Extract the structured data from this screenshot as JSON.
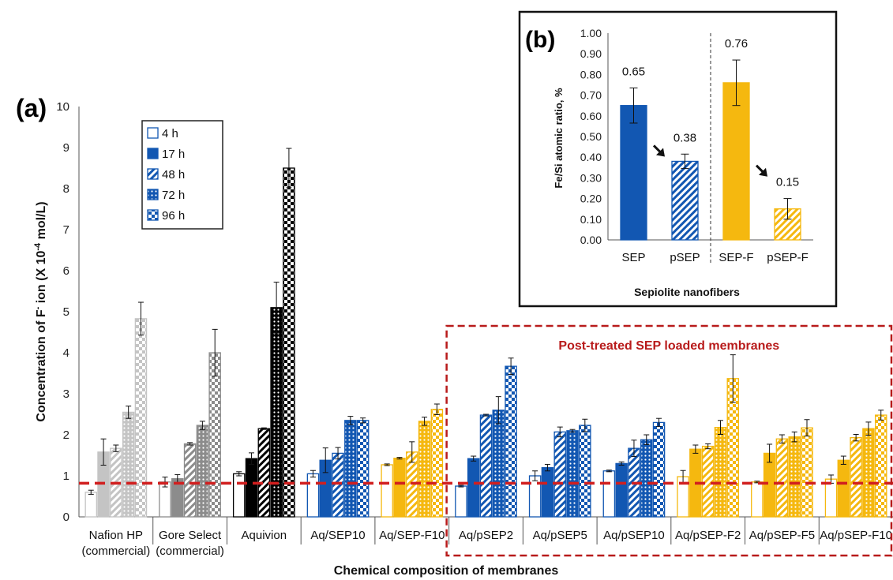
{
  "chart_data": [
    {
      "panel": "(a)",
      "type": "bar",
      "xlabel": "Chemical composition of membranes",
      "ylabel_parts": [
        "Concentration of F",
        "-",
        " ion (X 10",
        "-4",
        " mol/L)"
      ],
      "ylim": [
        0,
        10
      ],
      "yticks": [
        "0",
        "1",
        "2",
        "3",
        "4",
        "5",
        "6",
        "7",
        "8",
        "9",
        "10"
      ],
      "categories": [
        [
          "Nafion HP",
          "(commercial)"
        ],
        [
          "Gore Select",
          "(commercial)"
        ],
        [
          "Aquivion"
        ],
        [
          "Aq/SEP10"
        ],
        [
          "Aq/SEP-F10"
        ],
        [
          "Aq/pSEP2"
        ],
        [
          "Aq/pSEP5"
        ],
        [
          "Aq/pSEP10"
        ],
        [
          "Aq/pSEP-F2"
        ],
        [
          "Aq/pSEP-F5"
        ],
        [
          "Aq/pSEP-F10"
        ]
      ],
      "series": [
        {
          "name": "4 h",
          "pattern": "open",
          "values": [
            0.6,
            0.85,
            1.05,
            1.05,
            1.27,
            0.75,
            1.0,
            1.12,
            0.98,
            0.85,
            0.92
          ],
          "errors": [
            0.05,
            0.12,
            0.05,
            0.08,
            0.02,
            0.02,
            0.12,
            0.02,
            0.15,
            0.02,
            0.1
          ]
        },
        {
          "name": "17 h",
          "pattern": "solid",
          "values": [
            1.58,
            0.93,
            1.42,
            1.38,
            1.43,
            1.42,
            1.2,
            1.3,
            1.65,
            1.55,
            1.38
          ],
          "errors": [
            0.32,
            0.1,
            0.14,
            0.3,
            0.02,
            0.06,
            0.08,
            0.04,
            0.1,
            0.22,
            0.1
          ]
        },
        {
          "name": "48 h",
          "pattern": "diagonal",
          "values": [
            1.67,
            1.78,
            2.15,
            1.55,
            1.58,
            2.48,
            2.07,
            1.67,
            1.72,
            1.9,
            1.93
          ],
          "errors": [
            0.08,
            0.03,
            0.02,
            0.14,
            0.25,
            0.02,
            0.12,
            0.2,
            0.06,
            0.1,
            0.08
          ]
        },
        {
          "name": "72 h",
          "pattern": "dots",
          "values": [
            2.55,
            2.23,
            5.1,
            2.35,
            2.33,
            2.6,
            2.1,
            1.88,
            2.18,
            1.95,
            2.15
          ],
          "errors": [
            0.15,
            0.1,
            0.62,
            0.1,
            0.1,
            0.33,
            0.03,
            0.12,
            0.17,
            0.12,
            0.16
          ]
        },
        {
          "name": "96 h",
          "pattern": "checker",
          "values": [
            4.83,
            4.0,
            8.5,
            2.35,
            2.62,
            3.67,
            2.23,
            2.3,
            3.37,
            2.17,
            2.48
          ],
          "errors": [
            0.4,
            0.57,
            0.48,
            0.06,
            0.13,
            0.2,
            0.15,
            0.1,
            0.58,
            0.2,
            0.12
          ]
        }
      ],
      "group_colors": [
        "#c4c4c4",
        "#8c8c8c",
        "#000000",
        "#1257b2",
        "#f5b80f",
        "#1257b2",
        "#1257b2",
        "#1257b2",
        "#f5b80f",
        "#f5b80f",
        "#f5b80f"
      ],
      "reference_line": {
        "y": 0.82,
        "color": "#d11f1f"
      },
      "annotation": "Post-treated SEP loaded membranes",
      "annotation_color": "#b81b1b",
      "legend_position": "top-left"
    },
    {
      "panel": "(b)",
      "type": "bar",
      "xlabel": "Sepiolite nanofibers",
      "ylabel": "Fe/Si atomic ratio, %",
      "ylim": [
        0,
        1.0
      ],
      "yticks": [
        "0.00",
        "0.10",
        "0.20",
        "0.30",
        "0.40",
        "0.50",
        "0.60",
        "0.70",
        "0.80",
        "0.90",
        "1.00"
      ],
      "categories": [
        "SEP",
        "pSEP",
        "SEP-F",
        "pSEP-F"
      ],
      "values": [
        0.65,
        0.38,
        0.76,
        0.15
      ],
      "labels": [
        "0.65",
        "0.38",
        "0.76",
        "0.15"
      ],
      "errors": [
        0.085,
        0.035,
        0.11,
        0.05
      ],
      "colors": [
        "#1257b2",
        "#1257b2",
        "#f5b80f",
        "#f5b80f"
      ],
      "patterns": [
        "solid",
        "diagonal",
        "solid",
        "diagonal"
      ]
    }
  ]
}
